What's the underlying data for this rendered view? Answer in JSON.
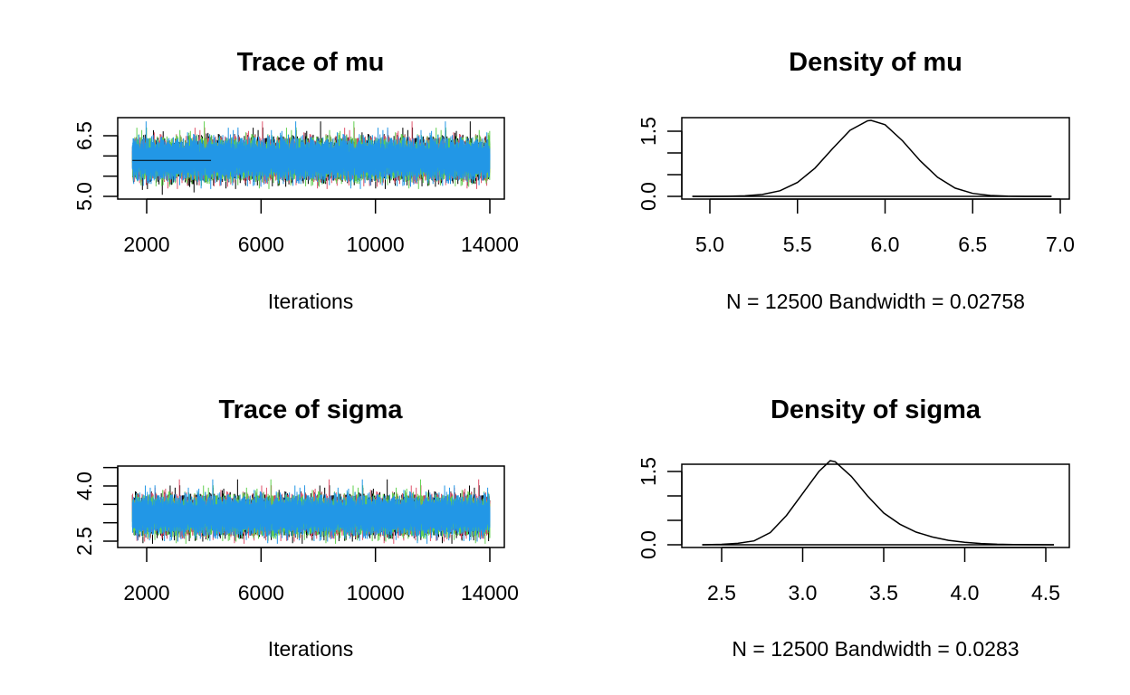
{
  "chart_data": [
    {
      "type": "line",
      "title": "Trace of mu",
      "xlabel": "Iterations",
      "ylabel": "",
      "xlim": [
        1501,
        14000
      ],
      "ylim": [
        4.95,
        6.75
      ],
      "xticks": [
        2000,
        6000,
        10000,
        14000
      ],
      "xtick_labels": [
        "2000",
        "6000",
        "10000",
        "14000"
      ],
      "yticks": [
        5.0,
        5.5,
        6.0,
        6.5
      ],
      "ytick_labels": [
        "5.0",
        "",
        "",
        "6.5"
      ],
      "chains": [
        {
          "color": "#000000",
          "center": 5.92,
          "spread": 0.23
        },
        {
          "color": "#DF536B",
          "center": 5.92,
          "spread": 0.23
        },
        {
          "color": "#61D04F",
          "center": 5.92,
          "spread": 0.23
        },
        {
          "color": "#2297E6",
          "center": 5.92,
          "spread": 0.23
        }
      ],
      "flat_segment": {
        "x": [
          1501,
          4250
        ],
        "y": 5.89,
        "color": "#000000"
      },
      "grid": false
    },
    {
      "type": "line",
      "title": "Density of mu",
      "xlabel": "N = 12500   Bandwidth = 0.02758",
      "ylabel": "",
      "xlim": [
        4.85,
        7.0
      ],
      "ylim": [
        0,
        1.8
      ],
      "xticks": [
        5.0,
        5.5,
        6.0,
        6.5,
        7.0
      ],
      "xtick_labels": [
        "5.0",
        "5.5",
        "6.0",
        "6.5",
        "7.0"
      ],
      "yticks": [
        0,
        0.5,
        1.0,
        1.5
      ],
      "ytick_labels": [
        "0.0",
        "",
        "",
        "1.5"
      ],
      "x": [
        4.9,
        5.0,
        5.1,
        5.2,
        5.3,
        5.4,
        5.5,
        5.6,
        5.7,
        5.8,
        5.9,
        5.92,
        6.0,
        6.1,
        6.2,
        6.3,
        6.4,
        6.5,
        6.6,
        6.7,
        6.8,
        6.9,
        6.95
      ],
      "y": [
        0.0001,
        0.0005,
        0.003,
        0.012,
        0.043,
        0.13,
        0.32,
        0.65,
        1.1,
        1.52,
        1.74,
        1.75,
        1.65,
        1.28,
        0.82,
        0.44,
        0.19,
        0.069,
        0.02,
        0.005,
        0.001,
        0.0002,
        0.0001
      ],
      "grid": false
    },
    {
      "type": "line",
      "title": "Trace of sigma",
      "xlabel": "Iterations",
      "ylabel": "",
      "xlim": [
        1501,
        14000
      ],
      "ylim": [
        2.4,
        4.6
      ],
      "xticks": [
        2000,
        6000,
        10000,
        14000
      ],
      "xtick_labels": [
        "2000",
        "6000",
        "10000",
        "14000"
      ],
      "yticks": [
        2.5,
        3.0,
        3.5,
        4.0,
        4.5
      ],
      "ytick_labels": [
        "2.5",
        "",
        "",
        "4.0",
        ""
      ],
      "chains": [
        {
          "color": "#000000",
          "center": 3.2,
          "spread": 0.24
        },
        {
          "color": "#DF536B",
          "center": 3.2,
          "spread": 0.24
        },
        {
          "color": "#61D04F",
          "center": 3.2,
          "spread": 0.24
        },
        {
          "color": "#2297E6",
          "center": 3.2,
          "spread": 0.24
        }
      ],
      "grid": false
    },
    {
      "type": "line",
      "title": "Density of sigma",
      "xlabel": "N = 12500   Bandwidth = 0.0283",
      "ylabel": "",
      "xlim": [
        2.33,
        4.6
      ],
      "ylim": [
        0,
        1.8
      ],
      "xticks": [
        2.5,
        3.0,
        3.5,
        4.0,
        4.5
      ],
      "xtick_labels": [
        "2.5",
        "3.0",
        "3.5",
        "4.0",
        "4.5"
      ],
      "yticks": [
        0,
        0.5,
        1.0,
        1.5
      ],
      "ytick_labels": [
        "0.0",
        "",
        "",
        "1.5"
      ],
      "x": [
        2.38,
        2.5,
        2.6,
        2.7,
        2.8,
        2.9,
        3.0,
        3.1,
        3.17,
        3.2,
        3.3,
        3.4,
        3.5,
        3.6,
        3.7,
        3.8,
        3.9,
        4.0,
        4.1,
        4.2,
        4.3,
        4.4,
        4.55
      ],
      "y": [
        0.0,
        0.01,
        0.03,
        0.08,
        0.25,
        0.6,
        1.05,
        1.5,
        1.72,
        1.7,
        1.4,
        1.0,
        0.65,
        0.42,
        0.26,
        0.16,
        0.09,
        0.05,
        0.025,
        0.012,
        0.005,
        0.002,
        0.0005
      ],
      "grid": false
    }
  ]
}
